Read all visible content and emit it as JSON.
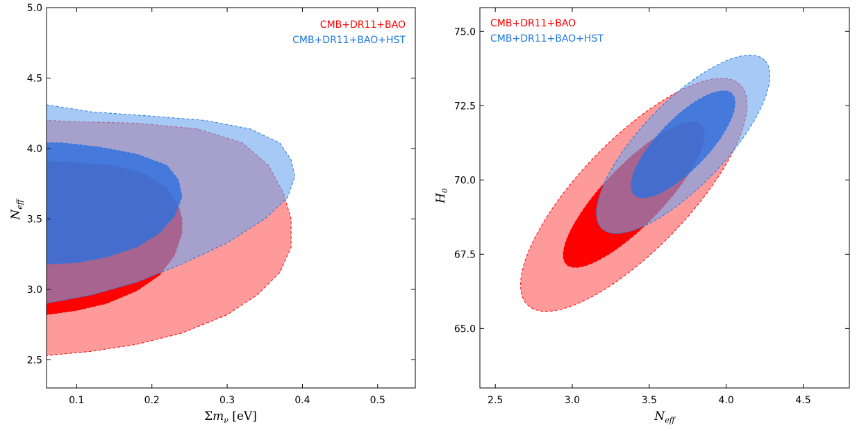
{
  "chart_data": [
    {
      "type": "contour",
      "xlabel": "Σm_ν [eV]",
      "ylabel": "N_eff",
      "xlim": [
        0.06,
        0.55
      ],
      "ylim": [
        2.3,
        5.0
      ],
      "xticks": [
        "0.1",
        "0.2",
        "0.3",
        "0.4",
        "0.5"
      ],
      "yticks": [
        "2.5",
        "3.0",
        "3.5",
        "4.0",
        "4.5",
        "5.0"
      ],
      "legend_position": "top-right",
      "series": [
        {
          "name": "CMB+DR11+BAO",
          "color": "#ff0000",
          "contours": [
            {
              "level": "95%",
              "points": [
                [
                  0.06,
                  2.53
                ],
                [
                  0.12,
                  2.56
                ],
                [
                  0.18,
                  2.61
                ],
                [
                  0.24,
                  2.69
                ],
                [
                  0.3,
                  2.82
                ],
                [
                  0.34,
                  2.96
                ],
                [
                  0.37,
                  3.12
                ],
                [
                  0.385,
                  3.3
                ],
                [
                  0.385,
                  3.5
                ],
                [
                  0.375,
                  3.68
                ],
                [
                  0.355,
                  3.88
                ],
                [
                  0.32,
                  4.04
                ],
                [
                  0.26,
                  4.14
                ],
                [
                  0.18,
                  4.18
                ],
                [
                  0.1,
                  4.19
                ],
                [
                  0.06,
                  4.2
                ]
              ]
            },
            {
              "level": "68%",
              "points": [
                [
                  0.06,
                  2.82
                ],
                [
                  0.1,
                  2.85
                ],
                [
                  0.14,
                  2.9
                ],
                [
                  0.18,
                  2.99
                ],
                [
                  0.21,
                  3.1
                ],
                [
                  0.23,
                  3.24
                ],
                [
                  0.24,
                  3.4
                ],
                [
                  0.24,
                  3.5
                ],
                [
                  0.235,
                  3.6
                ],
                [
                  0.22,
                  3.72
                ],
                [
                  0.19,
                  3.82
                ],
                [
                  0.15,
                  3.88
                ],
                [
                  0.1,
                  3.9
                ],
                [
                  0.06,
                  3.91
                ]
              ]
            }
          ]
        },
        {
          "name": "CMB+DR11+BAO+HST",
          "color": "#1f78e0",
          "contours": [
            {
              "level": "95%",
              "points": [
                [
                  0.06,
                  2.9
                ],
                [
                  0.12,
                  2.96
                ],
                [
                  0.18,
                  3.05
                ],
                [
                  0.24,
                  3.18
                ],
                [
                  0.3,
                  3.33
                ],
                [
                  0.35,
                  3.5
                ],
                [
                  0.38,
                  3.65
                ],
                [
                  0.39,
                  3.8
                ],
                [
                  0.385,
                  3.92
                ],
                [
                  0.37,
                  4.04
                ],
                [
                  0.33,
                  4.14
                ],
                [
                  0.27,
                  4.2
                ],
                [
                  0.2,
                  4.23
                ],
                [
                  0.12,
                  4.26
                ],
                [
                  0.06,
                  4.31
                ]
              ]
            },
            {
              "level": "68%",
              "points": [
                [
                  0.06,
                  3.18
                ],
                [
                  0.1,
                  3.19
                ],
                [
                  0.14,
                  3.23
                ],
                [
                  0.18,
                  3.3
                ],
                [
                  0.21,
                  3.4
                ],
                [
                  0.23,
                  3.52
                ],
                [
                  0.24,
                  3.66
                ],
                [
                  0.235,
                  3.78
                ],
                [
                  0.22,
                  3.88
                ],
                [
                  0.18,
                  3.96
                ],
                [
                  0.13,
                  4.01
                ],
                [
                  0.08,
                  4.04
                ],
                [
                  0.06,
                  4.04
                ]
              ]
            }
          ]
        }
      ]
    },
    {
      "type": "contour",
      "xlabel": "N_eff",
      "ylabel": "H_0",
      "xlim": [
        2.4,
        4.8
      ],
      "ylim": [
        63.0,
        75.8
      ],
      "xticks": [
        "2.5",
        "3.0",
        "3.5",
        "4.0",
        "4.5"
      ],
      "yticks": [
        "65.0",
        "67.5",
        "70.0",
        "72.5",
        "75.0"
      ],
      "legend_position": "top-left",
      "series": [
        {
          "name": "CMB+DR11+BAO",
          "color": "#ff0000",
          "contours": [
            {
              "level": "95%",
              "center": [
                3.4,
                69.5
              ],
              "halfaxes": [
                0.98,
                0.35
              ],
              "angle_deg": 45
            },
            {
              "level": "68%",
              "center": [
                3.4,
                69.5
              ],
              "halfaxes": [
                0.62,
                0.19
              ],
              "angle_deg": 45
            }
          ]
        },
        {
          "name": "CMB+DR11+BAO+HST",
          "color": "#1f78e0",
          "contours": [
            {
              "level": "95%",
              "center": [
                3.72,
                71.2
              ],
              "halfaxes": [
                0.75,
                0.27
              ],
              "angle_deg": 45
            },
            {
              "level": "68%",
              "center": [
                3.72,
                71.2
              ],
              "halfaxes": [
                0.45,
                0.16
              ],
              "angle_deg": 45
            }
          ]
        }
      ]
    }
  ]
}
